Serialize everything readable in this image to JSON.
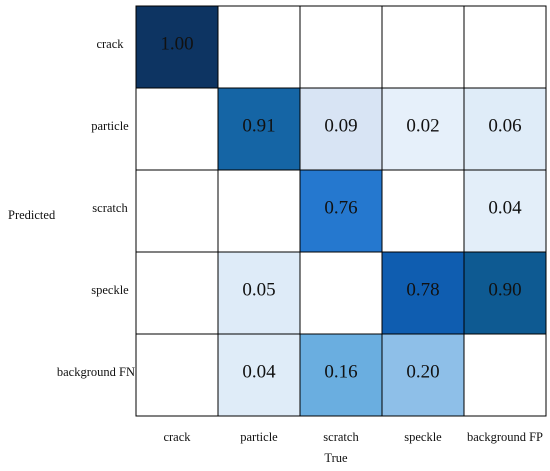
{
  "chart_data": {
    "type": "heatmap",
    "title": "",
    "xlabel": "True",
    "ylabel": "Predicted",
    "x_categories": [
      "crack",
      "particle",
      "scratch",
      "speckle",
      "background FP"
    ],
    "y_categories": [
      "crack",
      "particle",
      "scratch",
      "speckle",
      "background FN"
    ],
    "values": [
      [
        1.0,
        null,
        null,
        null,
        null
      ],
      [
        null,
        0.91,
        0.09,
        0.02,
        0.06
      ],
      [
        null,
        null,
        0.76,
        null,
        0.04
      ],
      [
        null,
        0.05,
        null,
        0.78,
        0.9
      ],
      [
        null,
        0.04,
        0.16,
        0.2,
        null
      ]
    ],
    "value_labels": [
      [
        "1.00",
        "",
        "",
        "",
        ""
      ],
      [
        "",
        "0.91",
        "0.09",
        "0.02",
        "0.06"
      ],
      [
        "",
        "",
        "0.76",
        "",
        "0.04"
      ],
      [
        "",
        "0.05",
        "",
        "0.78",
        "0.90"
      ],
      [
        "",
        "0.04",
        "0.16",
        "0.20",
        ""
      ]
    ],
    "cell_colors": [
      [
        "#0d3462",
        null,
        null,
        null,
        null
      ],
      [
        null,
        "#1565a5",
        "#d8e4f4",
        "#e6f0fa",
        "#dfecf8"
      ],
      [
        null,
        null,
        "#2578cf",
        null,
        "#e3eef9"
      ],
      [
        null,
        "#deebf8",
        null,
        "#0f5db0",
        "#0e5a92"
      ],
      [
        null,
        "#dfecf8",
        "#6aaee0",
        "#8ebfe8",
        null
      ]
    ],
    "colormap": "Blues",
    "grid": true
  }
}
